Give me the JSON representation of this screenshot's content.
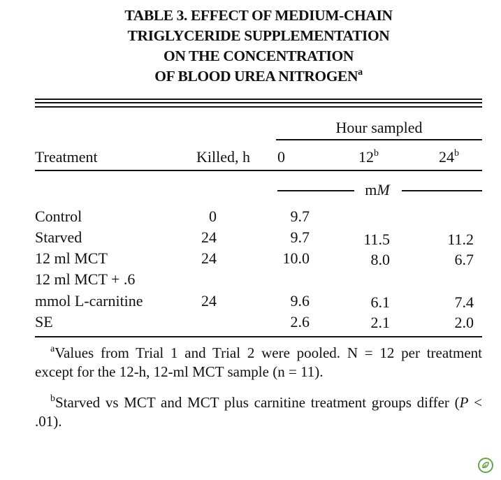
{
  "title": {
    "line1": "TABLE 3. EFFECT OF MEDIUM-CHAIN",
    "line2": "TRIGLYCERIDE SUPPLEMENTATION",
    "line3": "ON THE CONCENTRATION",
    "line4": "OF BLOOD UREA NITROGEN",
    "line4_sup": "a"
  },
  "header": {
    "group": "Hour sampled",
    "treatment": "Treatment",
    "killed": "Killed, h",
    "h0": "0",
    "h12": "12",
    "h12_sup": "b",
    "h24": "24",
    "h24_sup": "b",
    "unit": "mM"
  },
  "rows": [
    {
      "treatment": "Control",
      "killed": "0",
      "h0": "9.7",
      "h12": "",
      "h24": ""
    },
    {
      "treatment": "Starved",
      "killed": "24",
      "h0": "9.7",
      "h12": "11.5",
      "h24": "11.2"
    },
    {
      "treatment": "12 ml MCT",
      "killed": "24",
      "h0": "10.0",
      "h12": "8.0",
      "h24": "6.7"
    },
    {
      "treatment": "12 ml MCT + .6",
      "killed": "",
      "h0": "",
      "h12": "",
      "h24": ""
    },
    {
      "treatment": "mmol L-carnitine",
      "killed": "24",
      "h0": "9.6",
      "h12": "6.1",
      "h24": "7.4"
    },
    {
      "treatment": "SE",
      "killed": "",
      "h0": "2.6",
      "h12": "2.1",
      "h24": "2.0"
    }
  ],
  "footnotes": {
    "a_mark": "a",
    "a_text": "Values from Trial 1 and Trial 2 were pooled. N = 12 per treatment except for the 12-h, 12-ml MCT sample (n = 11).",
    "b_mark": "b",
    "b_text_1": "Starved vs MCT and MCT plus carnitine treatment groups differ (",
    "b_p": "P",
    "b_text_2": " < .01)."
  }
}
